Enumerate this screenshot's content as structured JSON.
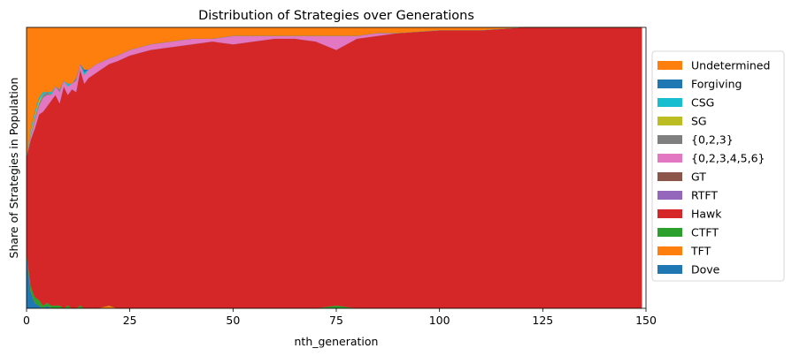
{
  "chart_data": {
    "type": "area",
    "stacked": true,
    "normalized": true,
    "title": "Distribution of Strategies over Generations",
    "xlabel": "nth_generation",
    "ylabel": "Share of Strategies in Population",
    "xlim": [
      0,
      150
    ],
    "ylim": [
      0,
      1
    ],
    "x_ticks": [
      0,
      25,
      50,
      75,
      100,
      125,
      150
    ],
    "y_ticks_shown": false,
    "grid": false,
    "legend_position": "right",
    "x": [
      0,
      1,
      2,
      3,
      4,
      5,
      6,
      7,
      8,
      9,
      10,
      11,
      12,
      13,
      14,
      15,
      17,
      20,
      22,
      25,
      30,
      35,
      40,
      45,
      50,
      55,
      60,
      65,
      70,
      75,
      80,
      85,
      90,
      100,
      110,
      120,
      130,
      140,
      149
    ],
    "series": [
      {
        "name": "Dove",
        "color": "#1f77b4",
        "values": [
          0.2,
          0.06,
          0.02,
          0.01,
          0.0,
          0.01,
          0.0,
          0.0,
          0.0,
          0.0,
          0.0,
          0.0,
          0.0,
          0.0,
          0.0,
          0.0,
          0.0,
          0.0,
          0.0,
          0.0,
          0.0,
          0.0,
          0.0,
          0.0,
          0.0,
          0.0,
          0.0,
          0.0,
          0.0,
          0.0,
          0.0,
          0.0,
          0.0,
          0.0,
          0.0,
          0.0,
          0.0,
          0.0,
          0.0
        ]
      },
      {
        "name": "TFT",
        "color": "#ff7f0e",
        "values": [
          0.0,
          0.0,
          0.0,
          0.0,
          0.0,
          0.0,
          0.0,
          0.0,
          0.0,
          0.0,
          0.0,
          0.0,
          0.0,
          0.0,
          0.0,
          0.0,
          0.0,
          0.01,
          0.0,
          0.0,
          0.0,
          0.0,
          0.0,
          0.0,
          0.0,
          0.0,
          0.0,
          0.0,
          0.0,
          0.0,
          0.0,
          0.0,
          0.0,
          0.0,
          0.0,
          0.0,
          0.0,
          0.0,
          0.0
        ]
      },
      {
        "name": "CTFT",
        "color": "#2ca02c",
        "values": [
          0.0,
          0.02,
          0.02,
          0.02,
          0.01,
          0.01,
          0.01,
          0.01,
          0.01,
          0.0,
          0.01,
          0.0,
          0.0,
          0.01,
          0.0,
          0.0,
          0.0,
          0.0,
          0.0,
          0.0,
          0.0,
          0.0,
          0.0,
          0.0,
          0.0,
          0.0,
          0.0,
          0.0,
          0.0,
          0.01,
          0.0,
          0.0,
          0.0,
          0.0,
          0.0,
          0.0,
          0.0,
          0.0,
          0.0
        ]
      },
      {
        "name": "Hawk",
        "color": "#d62728",
        "values": [
          0.34,
          0.52,
          0.6,
          0.66,
          0.69,
          0.7,
          0.73,
          0.75,
          0.72,
          0.79,
          0.75,
          0.78,
          0.77,
          0.84,
          0.8,
          0.82,
          0.84,
          0.86,
          0.88,
          0.9,
          0.92,
          0.93,
          0.94,
          0.95,
          0.94,
          0.95,
          0.96,
          0.96,
          0.95,
          0.91,
          0.96,
          0.97,
          0.98,
          0.99,
          0.99,
          1.0,
          1.0,
          1.0,
          1.0
        ]
      },
      {
        "name": "RTFT",
        "color": "#9467bd",
        "values": [
          0.0,
          0.0,
          0.0,
          0.0,
          0.0,
          0.0,
          0.0,
          0.0,
          0.0,
          0.0,
          0.0,
          0.0,
          0.0,
          0.0,
          0.0,
          0.0,
          0.0,
          0.0,
          0.0,
          0.0,
          0.0,
          0.0,
          0.0,
          0.0,
          0.0,
          0.0,
          0.0,
          0.0,
          0.0,
          0.0,
          0.0,
          0.0,
          0.0,
          0.0,
          0.0,
          0.0,
          0.0,
          0.0,
          0.0
        ]
      },
      {
        "name": "GT",
        "color": "#8c564b",
        "values": [
          0.0,
          0.0,
          0.0,
          0.0,
          0.0,
          0.0,
          0.0,
          0.0,
          0.0,
          0.0,
          0.0,
          0.0,
          0.0,
          0.0,
          0.0,
          0.0,
          0.0,
          0.0,
          0.0,
          0.0,
          0.0,
          0.0,
          0.0,
          0.0,
          0.0,
          0.0,
          0.0,
          0.0,
          0.0,
          0.0,
          0.0,
          0.0,
          0.0,
          0.0,
          0.0,
          0.0,
          0.0,
          0.0,
          0.0
        ]
      },
      {
        "name": "{0,2,3,4,5,6}",
        "color": "#e377c2",
        "values": [
          0.0,
          0.01,
          0.03,
          0.03,
          0.05,
          0.04,
          0.02,
          0.03,
          0.04,
          0.02,
          0.03,
          0.02,
          0.04,
          0.02,
          0.03,
          0.03,
          0.03,
          0.02,
          0.02,
          0.02,
          0.02,
          0.02,
          0.02,
          0.01,
          0.03,
          0.02,
          0.01,
          0.01,
          0.02,
          0.05,
          0.01,
          0.01,
          0.0,
          0.0,
          0.0,
          0.0,
          0.0,
          0.0,
          0.0
        ]
      },
      {
        "name": "{0,2,3}",
        "color": "#7f7f7f",
        "values": [
          0.0,
          0.01,
          0.01,
          0.01,
          0.01,
          0.01,
          0.0,
          0.0,
          0.01,
          0.0,
          0.0,
          0.0,
          0.01,
          0.0,
          0.0,
          0.0,
          0.0,
          0.0,
          0.0,
          0.0,
          0.0,
          0.0,
          0.0,
          0.0,
          0.0,
          0.0,
          0.0,
          0.0,
          0.0,
          0.0,
          0.0,
          0.0,
          0.0,
          0.0,
          0.0,
          0.0,
          0.0,
          0.0,
          0.0
        ]
      },
      {
        "name": "SG",
        "color": "#bcbd22",
        "values": [
          0.0,
          0.01,
          0.01,
          0.01,
          0.0,
          0.0,
          0.0,
          0.0,
          0.0,
          0.0,
          0.0,
          0.0,
          0.0,
          0.0,
          0.0,
          0.0,
          0.0,
          0.0,
          0.0,
          0.0,
          0.0,
          0.0,
          0.0,
          0.0,
          0.0,
          0.0,
          0.0,
          0.0,
          0.0,
          0.0,
          0.0,
          0.0,
          0.0,
          0.0,
          0.0,
          0.0,
          0.0,
          0.0,
          0.0
        ]
      },
      {
        "name": "CSG",
        "color": "#17becf",
        "values": [
          0.0,
          0.01,
          0.01,
          0.01,
          0.01,
          0.0,
          0.01,
          0.0,
          0.0,
          0.0,
          0.01,
          0.0,
          0.0,
          0.0,
          0.01,
          0.0,
          0.0,
          0.0,
          0.0,
          0.0,
          0.0,
          0.0,
          0.0,
          0.0,
          0.0,
          0.0,
          0.0,
          0.0,
          0.0,
          0.0,
          0.0,
          0.0,
          0.0,
          0.0,
          0.0,
          0.0,
          0.0,
          0.0,
          0.0
        ]
      },
      {
        "name": "Forgiving",
        "color": "#1f77b4",
        "values": [
          0.0,
          0.0,
          0.0,
          0.0,
          0.0,
          0.0,
          0.0,
          0.0,
          0.0,
          0.0,
          0.0,
          0.0,
          0.0,
          0.0,
          0.01,
          0.0,
          0.0,
          0.0,
          0.0,
          0.0,
          0.0,
          0.0,
          0.0,
          0.0,
          0.0,
          0.0,
          0.0,
          0.0,
          0.0,
          0.0,
          0.0,
          0.0,
          0.0,
          0.0,
          0.0,
          0.0,
          0.0,
          0.0,
          0.0
        ]
      },
      {
        "name": "Undetermined",
        "color": "#ff7f0e",
        "values": [
          0.46,
          0.36,
          0.3,
          0.25,
          0.23,
          0.23,
          0.23,
          0.21,
          0.22,
          0.19,
          0.2,
          0.2,
          0.18,
          0.13,
          0.15,
          0.15,
          0.13,
          0.11,
          0.1,
          0.08,
          0.06,
          0.05,
          0.04,
          0.04,
          0.03,
          0.03,
          0.03,
          0.03,
          0.03,
          0.03,
          0.03,
          0.02,
          0.02,
          0.01,
          0.01,
          0.0,
          0.0,
          0.0,
          0.0
        ]
      }
    ]
  }
}
